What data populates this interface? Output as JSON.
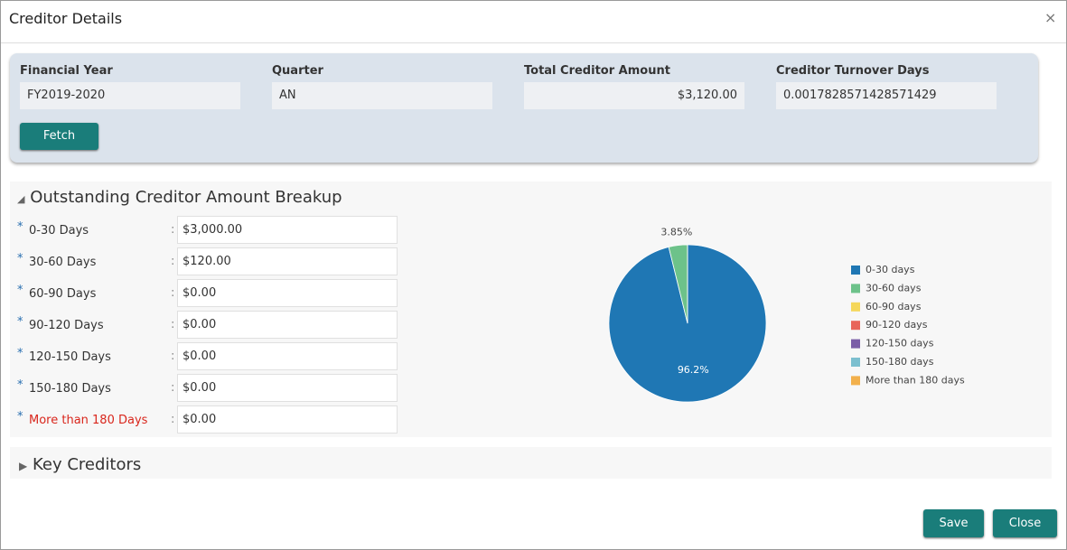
{
  "header": {
    "title": "Creditor Details",
    "close": "×"
  },
  "filters": {
    "fields": [
      {
        "label": "Financial Year",
        "value": "FY2019-2020"
      },
      {
        "label": "Quarter",
        "value": "AN"
      },
      {
        "label": "Total Creditor Amount",
        "value": "$3,120.00"
      },
      {
        "label": "Creditor Turnover Days",
        "value": "0.0017828571428571429"
      }
    ],
    "fetch": "Fetch"
  },
  "breakup": {
    "title": "Outstanding Creditor Amount Breakup",
    "required_mark": "*",
    "separator": ":",
    "rows": [
      {
        "label": "0-30 Days",
        "value": "$3,000.00"
      },
      {
        "label": "30-60 Days",
        "value": "$120.00"
      },
      {
        "label": "60-90 Days",
        "value": "$0.00"
      },
      {
        "label": "90-120 Days",
        "value": "$0.00"
      },
      {
        "label": "120-150 Days",
        "value": "$0.00"
      },
      {
        "label": "150-180 Days",
        "value": "$0.00"
      },
      {
        "label": "More than 180 Days",
        "value": "$0.00"
      }
    ]
  },
  "chart_data": {
    "type": "pie",
    "categories": [
      "0-30 days",
      "30-60 days",
      "60-90 days",
      "90-120 days",
      "120-150 days",
      "150-180 days",
      "More than 180 days"
    ],
    "values": [
      96.2,
      3.85,
      0,
      0,
      0,
      0,
      0
    ],
    "value_labels": [
      "96.2%",
      "3.85%",
      null,
      null,
      null,
      null,
      null
    ],
    "colors": [
      "#1f77b4",
      "#6dc28a",
      "#f5d75a",
      "#e8655a",
      "#7b5ea7",
      "#7cbfcf",
      "#f2b04c"
    ]
  },
  "key_creditors": {
    "title": "Key Creditors"
  },
  "footer": {
    "save": "Save",
    "close": "Close"
  }
}
